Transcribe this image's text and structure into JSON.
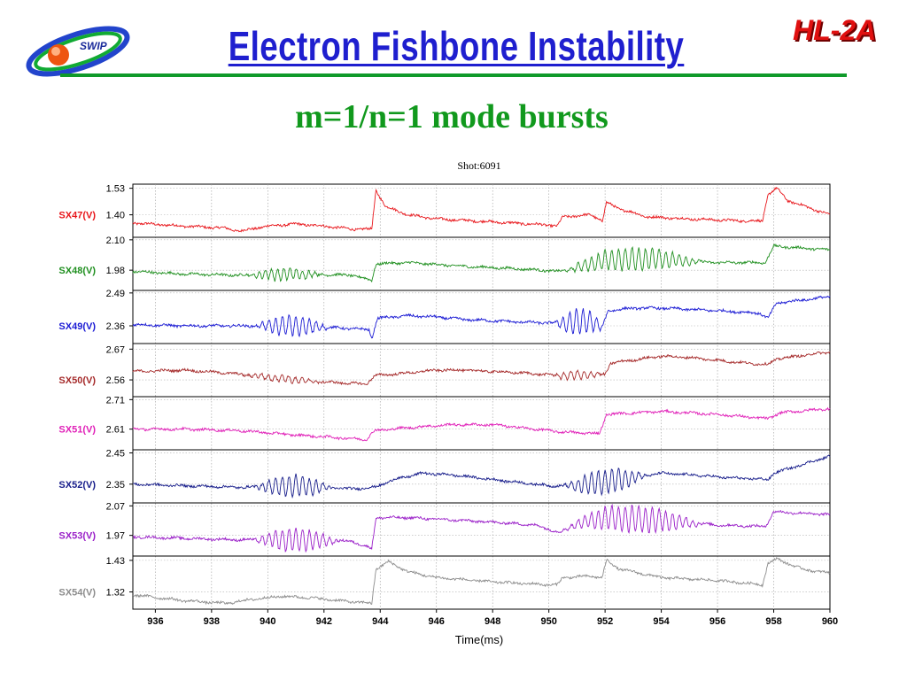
{
  "slide": {
    "title": "Electron Fishbone Instability",
    "brand": "HL-2A",
    "logo_text": "SWIP",
    "subtitle": "m=1/n=1 mode bursts"
  },
  "colors": {
    "title": "#1f1fcf",
    "subtitle": "#11991d",
    "rule": "#0f9a2a",
    "brand": "#e01010"
  },
  "chart_data": {
    "type": "line",
    "title": "Shot:6091",
    "xlabel": "Time(ms)",
    "xlim": [
      935.2,
      960
    ],
    "xticks": [
      "936",
      "938",
      "940",
      "942",
      "944",
      "946",
      "948",
      "950",
      "952",
      "954",
      "956",
      "958",
      "960"
    ],
    "grid": true,
    "layout": "stacked panels",
    "series": [
      {
        "name": "SX47(V)",
        "color": "#e8161b",
        "yticks": [
          "1.53",
          "1.40"
        ],
        "ylim": [
          1.29,
          1.55
        ],
        "points": [
          [
            935.2,
            1.36
          ],
          [
            937,
            1.345
          ],
          [
            938.5,
            1.335
          ],
          [
            939,
            1.32
          ],
          [
            940,
            1.345
          ],
          [
            941,
            1.355
          ],
          [
            942,
            1.345
          ],
          [
            943,
            1.33
          ],
          [
            943.7,
            1.33
          ],
          [
            943.85,
            1.52
          ],
          [
            944.2,
            1.44
          ],
          [
            945,
            1.4
          ],
          [
            946,
            1.38
          ],
          [
            948,
            1.365
          ],
          [
            950,
            1.35
          ],
          [
            950.3,
            1.345
          ],
          [
            950.5,
            1.39
          ],
          [
            951.5,
            1.4
          ],
          [
            951.9,
            1.37
          ],
          [
            952.05,
            1.46
          ],
          [
            952.5,
            1.43
          ],
          [
            953.5,
            1.39
          ],
          [
            955,
            1.38
          ],
          [
            957,
            1.37
          ],
          [
            957.6,
            1.37
          ],
          [
            957.8,
            1.5
          ],
          [
            958.1,
            1.53
          ],
          [
            958.5,
            1.47
          ],
          [
            960,
            1.4
          ]
        ],
        "bursts": []
      },
      {
        "name": "SX48(V)",
        "color": "#1f8f1f",
        "yticks": [
          "2.10",
          "1.98"
        ],
        "ylim": [
          1.9,
          2.11
        ],
        "points": [
          [
            935.2,
            1.975
          ],
          [
            937,
            1.965
          ],
          [
            939,
            1.96
          ],
          [
            941,
            1.965
          ],
          [
            943,
            1.96
          ],
          [
            943.7,
            1.94
          ],
          [
            943.85,
            2.005
          ],
          [
            945,
            2.01
          ],
          [
            947,
            1.995
          ],
          [
            949,
            1.985
          ],
          [
            950.4,
            1.975
          ],
          [
            951,
            1.99
          ],
          [
            952,
            2.02
          ],
          [
            954,
            2.025
          ],
          [
            955,
            2.015
          ],
          [
            956,
            2.01
          ],
          [
            957.7,
            2.01
          ],
          [
            958,
            2.075
          ],
          [
            960,
            2.06
          ]
        ],
        "bursts": [
          [
            939.2,
            942,
            0.025,
            0.22
          ],
          [
            950.5,
            955.5,
            0.045,
            0.24
          ]
        ]
      },
      {
        "name": "SX49(V)",
        "color": "#1a1ad4",
        "yticks": [
          "2.49",
          "2.36"
        ],
        "ylim": [
          2.29,
          2.5
        ],
        "points": [
          [
            935.2,
            2.365
          ],
          [
            937,
            2.36
          ],
          [
            939,
            2.36
          ],
          [
            941,
            2.36
          ],
          [
            942,
            2.355
          ],
          [
            943.6,
            2.345
          ],
          [
            943.7,
            2.31
          ],
          [
            943.9,
            2.39
          ],
          [
            945,
            2.4
          ],
          [
            946,
            2.395
          ],
          [
            947,
            2.385
          ],
          [
            949,
            2.375
          ],
          [
            950.5,
            2.37
          ],
          [
            951.5,
            2.38
          ],
          [
            951.9,
            2.35
          ],
          [
            952.1,
            2.42
          ],
          [
            953,
            2.43
          ],
          [
            954,
            2.43
          ],
          [
            956,
            2.42
          ],
          [
            957.5,
            2.41
          ],
          [
            957.8,
            2.39
          ],
          [
            958.1,
            2.45
          ],
          [
            960,
            2.475
          ]
        ],
        "bursts": [
          [
            939.5,
            942.2,
            0.04,
            0.24
          ],
          [
            950.2,
            952,
            0.05,
            0.24
          ]
        ]
      },
      {
        "name": "SX50(V)",
        "color": "#a52a2a",
        "yticks": [
          "2.67",
          "2.56"
        ],
        "ylim": [
          2.5,
          2.69
        ],
        "points": [
          [
            935.2,
            2.59
          ],
          [
            937,
            2.595
          ],
          [
            938.5,
            2.585
          ],
          [
            940,
            2.57
          ],
          [
            941.5,
            2.555
          ],
          [
            943.5,
            2.545
          ],
          [
            943.8,
            2.575
          ],
          [
            945,
            2.585
          ],
          [
            946,
            2.595
          ],
          [
            947,
            2.595
          ],
          [
            949,
            2.585
          ],
          [
            950.5,
            2.575
          ],
          [
            952,
            2.58
          ],
          [
            952.2,
            2.62
          ],
          [
            954,
            2.645
          ],
          [
            955,
            2.64
          ],
          [
            957,
            2.62
          ],
          [
            957.8,
            2.615
          ],
          [
            958.1,
            2.635
          ],
          [
            960,
            2.66
          ]
        ],
        "bursts": [
          [
            939,
            942,
            0.012,
            0.24
          ],
          [
            950,
            952,
            0.015,
            0.24
          ]
        ]
      },
      {
        "name": "SX51(V)",
        "color": "#e020b8",
        "yticks": [
          "2.71",
          "2.61"
        ],
        "ylim": [
          2.54,
          2.72
        ],
        "points": [
          [
            935.2,
            2.61
          ],
          [
            937,
            2.61
          ],
          [
            939,
            2.605
          ],
          [
            941,
            2.59
          ],
          [
            943.5,
            2.575
          ],
          [
            943.8,
            2.605
          ],
          [
            945,
            2.615
          ],
          [
            946.5,
            2.625
          ],
          [
            948,
            2.625
          ],
          [
            950.5,
            2.6
          ],
          [
            951.8,
            2.595
          ],
          [
            952.05,
            2.66
          ],
          [
            953,
            2.665
          ],
          [
            954,
            2.67
          ],
          [
            956,
            2.66
          ],
          [
            957.8,
            2.645
          ],
          [
            958.2,
            2.665
          ],
          [
            960,
            2.68
          ]
        ],
        "bursts": []
      },
      {
        "name": "SX52(V)",
        "color": "#161c8a",
        "yticks": [
          "2.45",
          "2.35"
        ],
        "ylim": [
          2.29,
          2.46
        ],
        "points": [
          [
            935.2,
            2.35
          ],
          [
            937,
            2.345
          ],
          [
            939,
            2.34
          ],
          [
            941,
            2.345
          ],
          [
            943,
            2.335
          ],
          [
            943.8,
            2.34
          ],
          [
            944.5,
            2.365
          ],
          [
            945.5,
            2.385
          ],
          [
            946.5,
            2.38
          ],
          [
            948,
            2.365
          ],
          [
            950,
            2.345
          ],
          [
            951,
            2.345
          ],
          [
            952.5,
            2.365
          ],
          [
            954,
            2.385
          ],
          [
            955,
            2.38
          ],
          [
            956.5,
            2.37
          ],
          [
            957.8,
            2.365
          ],
          [
            958,
            2.385
          ],
          [
            960,
            2.44
          ]
        ],
        "bursts": [
          [
            939.5,
            942.3,
            0.035,
            0.24
          ],
          [
            950.5,
            953.5,
            0.04,
            0.24
          ]
        ]
      },
      {
        "name": "SX53(V)",
        "color": "#9a1fc8",
        "yticks": [
          "2.07",
          "1.97"
        ],
        "ylim": [
          1.9,
          2.08
        ],
        "points": [
          [
            935.2,
            1.965
          ],
          [
            937,
            1.96
          ],
          [
            939,
            1.955
          ],
          [
            941,
            1.955
          ],
          [
            943,
            1.95
          ],
          [
            943.7,
            1.925
          ],
          [
            943.85,
            2.03
          ],
          [
            945,
            2.03
          ],
          [
            946,
            2.025
          ],
          [
            948,
            2.015
          ],
          [
            949.5,
            2.005
          ],
          [
            950.4,
            1.98
          ],
          [
            951,
            2.01
          ],
          [
            952,
            2.03
          ],
          [
            954,
            2.02
          ],
          [
            956,
            2.005
          ],
          [
            957.7,
            2.0
          ],
          [
            958,
            2.05
          ],
          [
            960,
            2.04
          ]
        ],
        "bursts": [
          [
            939.5,
            942.5,
            0.04,
            0.24
          ],
          [
            950.5,
            955.5,
            0.045,
            0.24
          ]
        ]
      },
      {
        "name": "SX54(V)",
        "color": "#8c8c8c",
        "yticks": [
          "1.43",
          "1.32"
        ],
        "ylim": [
          1.26,
          1.445
        ],
        "points": [
          [
            935.2,
            1.31
          ],
          [
            937,
            1.29
          ],
          [
            938.5,
            1.28
          ],
          [
            939.5,
            1.295
          ],
          [
            940.5,
            1.305
          ],
          [
            941.5,
            1.3
          ],
          [
            942.5,
            1.29
          ],
          [
            943.7,
            1.28
          ],
          [
            943.85,
            1.4
          ],
          [
            944.3,
            1.425
          ],
          [
            945,
            1.39
          ],
          [
            946,
            1.37
          ],
          [
            948,
            1.355
          ],
          [
            950,
            1.345
          ],
          [
            950.3,
            1.345
          ],
          [
            950.5,
            1.37
          ],
          [
            951.5,
            1.375
          ],
          [
            951.9,
            1.37
          ],
          [
            952.05,
            1.43
          ],
          [
            952.5,
            1.4
          ],
          [
            954,
            1.37
          ],
          [
            956,
            1.36
          ],
          [
            957.6,
            1.345
          ],
          [
            957.8,
            1.42
          ],
          [
            958.1,
            1.435
          ],
          [
            959,
            1.4
          ],
          [
            960,
            1.385
          ]
        ],
        "bursts": []
      }
    ]
  }
}
